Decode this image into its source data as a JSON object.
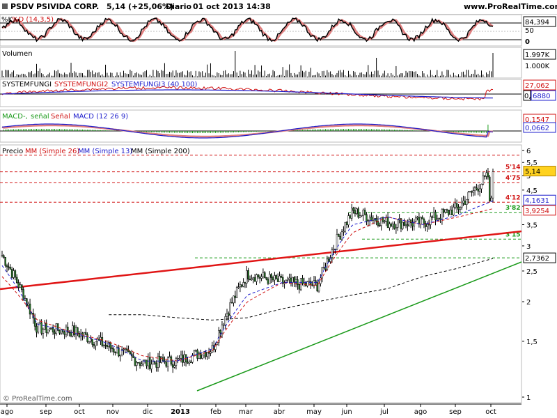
{
  "header": {
    "symbol": "PSDV",
    "company": "PSIVIDA CORP.",
    "price_change": "5,14 (+25,06%)",
    "period": "Diario",
    "datetime": "01 oct 2013 14:38",
    "site": "www.ProRealTime.com"
  },
  "colors": {
    "red": "#d01010",
    "blue": "#1c1ccc",
    "green": "#1a9a1a",
    "black": "#000000",
    "gray": "#888888",
    "candle_body": "#2a7a2a"
  },
  "stochastic": {
    "title_k": "%K",
    "title_d": "%D (14,3,5)",
    "top_label": "84,394",
    "mid_label": "50",
    "bottom_label": "0"
  },
  "volume": {
    "title": "Volumen",
    "label_1": "1.997K",
    "label_2": "1.000K"
  },
  "systemfungi": {
    "title_1": "SYSTEMFUNGI",
    "title_2": "SYSTEMFUNGI2",
    "title_3": "SYSTEMFUNGI3 (40 100)",
    "label_top": "27,062",
    "label_2": "0,",
    "label_3": "6880"
  },
  "macd": {
    "title_1": "MACD-,",
    "title_2": "señal",
    "title_3": "Señal",
    "title_4": "MACD (12 26 9)",
    "label_1": "0,1547",
    "label_2": "0,0662"
  },
  "price_panel": {
    "title_precio": "Precio",
    "title_mm26": "MM (Simple 26)",
    "title_mm13": "MM (Simple 13)",
    "title_mm200": "MM (Simple 200)",
    "watermark": "© ProRealTime.com",
    "level_labels": [
      "5'14",
      "4'75",
      "4'12",
      "3'82",
      "3'15"
    ],
    "axis_badges": [
      "5,14",
      "4,1631",
      "3,9254",
      "2,7362"
    ]
  },
  "chart_data": {
    "type": "line",
    "title": "PSDV - PSIVIDA CORP.",
    "xlabel": "",
    "ylabel": "",
    "x": [
      "ago",
      "sep",
      "oct",
      "nov",
      "dic",
      "2013",
      "feb",
      "mar",
      "abr",
      "may",
      "jun",
      "jul",
      "ago",
      "sep",
      "oct"
    ],
    "y_ticks": [
      "1",
      "1,5",
      "2",
      "2,5",
      "3",
      "3,5",
      "4",
      "4,5",
      "5",
      "5,5",
      "6"
    ],
    "ylim": [
      1,
      6
    ],
    "y_scale": "log",
    "series": [
      {
        "name": "Precio",
        "values": [
          2.8,
          1.65,
          1.62,
          1.45,
          1.28,
          1.3,
          1.42,
          2.45,
          2.3,
          2.25,
          3.85,
          3.55,
          3.55,
          3.95,
          5.14
        ]
      },
      {
        "name": "MM (Simple 26)",
        "values": [
          2.4,
          1.75,
          1.6,
          1.5,
          1.35,
          1.3,
          1.4,
          2.0,
          2.3,
          2.25,
          3.3,
          3.7,
          3.5,
          3.7,
          3.93
        ]
      },
      {
        "name": "MM (Simple 13)",
        "values": [
          2.6,
          1.7,
          1.6,
          1.48,
          1.3,
          1.3,
          1.42,
          2.1,
          2.3,
          2.3,
          3.5,
          3.7,
          3.5,
          3.75,
          4.16
        ]
      },
      {
        "name": "MM (Simple 200)",
        "values": [
          null,
          null,
          null,
          1.82,
          1.82,
          1.78,
          1.75,
          1.78,
          1.9,
          2.0,
          2.1,
          2.2,
          2.4,
          2.55,
          2.7362
        ]
      }
    ],
    "horizontal_levels": [
      {
        "label": "5'14",
        "value": 5.14
      },
      {
        "label": "4'75",
        "value": 4.75
      },
      {
        "label": "4'12",
        "value": 4.12
      },
      {
        "label": "3'82",
        "value": 3.82
      },
      {
        "label": "3'15",
        "value": 3.15
      }
    ],
    "grid": false,
    "legend": "top-left"
  }
}
